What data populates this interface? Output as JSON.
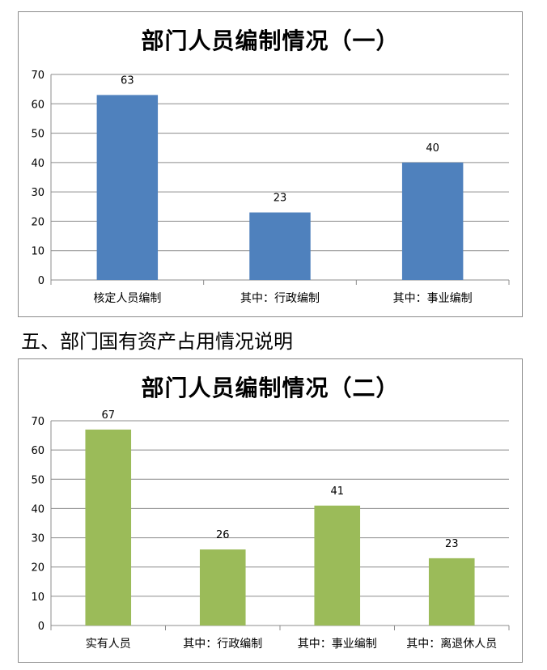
{
  "section_heading": "五、部门国有资产占用情况说明",
  "chart_data": [
    {
      "type": "bar",
      "title": "部门人员编制情况（一）",
      "categories": [
        "核定人员编制",
        "其中：行政编制",
        "其中：事业编制"
      ],
      "values": [
        63,
        23,
        40
      ],
      "ylim": [
        0,
        70
      ],
      "yticks": [
        0,
        10,
        20,
        30,
        40,
        50,
        60,
        70
      ],
      "grid": true,
      "color": "#4f81bd",
      "data_labels": true
    },
    {
      "type": "bar",
      "title": "部门人员编制情况（二）",
      "categories": [
        "实有人员",
        "其中：行政编制",
        "其中：事业编制",
        "其中：离退休人员"
      ],
      "values": [
        67,
        26,
        41,
        23
      ],
      "ylim": [
        0,
        70
      ],
      "yticks": [
        0,
        10,
        20,
        30,
        40,
        50,
        60,
        70
      ],
      "grid": true,
      "color": "#9bbb59",
      "data_labels": true
    }
  ]
}
